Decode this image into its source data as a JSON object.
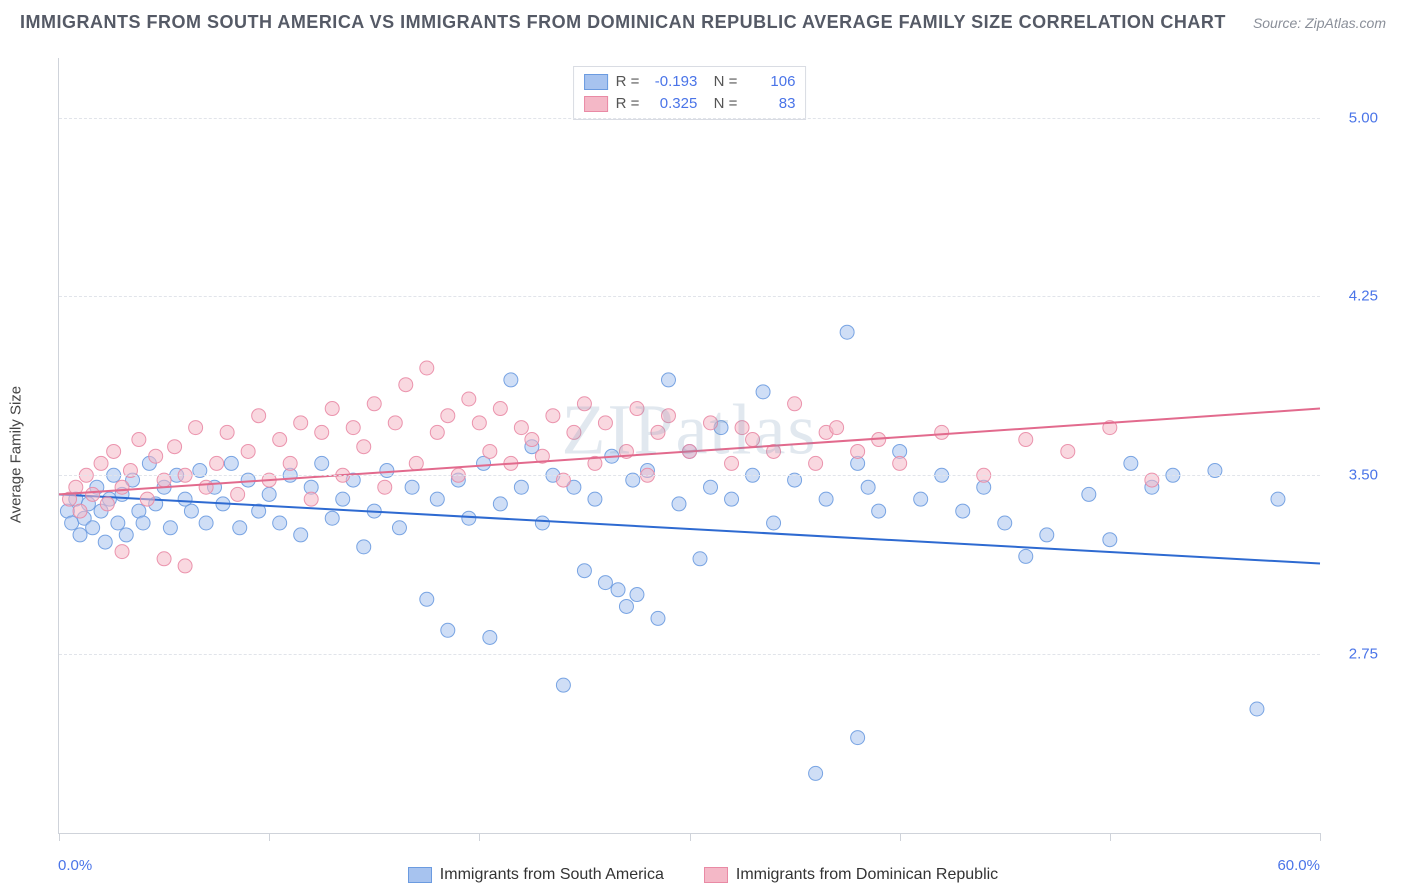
{
  "title": "IMMIGRANTS FROM SOUTH AMERICA VS IMMIGRANTS FROM DOMINICAN REPUBLIC AVERAGE FAMILY SIZE CORRELATION CHART",
  "source_label": "Source: ZipAtlas.com",
  "watermark": "ZIPatlas",
  "y_axis_label": "Average Family Size",
  "chart": {
    "type": "scatter",
    "xlim": [
      0,
      60
    ],
    "ylim": [
      2.0,
      5.25
    ],
    "x_min_label": "0.0%",
    "x_max_label": "60.0%",
    "y_ticks": [
      2.75,
      3.5,
      4.25,
      5.0
    ],
    "y_tick_labels": [
      "2.75",
      "3.50",
      "4.25",
      "5.00"
    ],
    "x_tick_positions": [
      0,
      10,
      20,
      30,
      40,
      50,
      60
    ],
    "background_color": "#ffffff",
    "grid_color": "#e1e4ea",
    "axis_color": "#cfd3da",
    "tick_label_color": "#4a74e8",
    "marker_radius": 7,
    "marker_opacity": 0.55,
    "marker_stroke_opacity": 0.9,
    "line_width": 2,
    "series": [
      {
        "name": "Immigrants from South America",
        "color_fill": "#a7c3ef",
        "color_stroke": "#6b9be0",
        "line_color": "#2e6ad1",
        "R": "-0.193",
        "N": "106",
        "trend": {
          "x1": 0,
          "y1": 3.42,
          "x2": 60,
          "y2": 3.13
        },
        "points": [
          [
            0.4,
            3.35
          ],
          [
            0.6,
            3.3
          ],
          [
            0.8,
            3.4
          ],
          [
            1.0,
            3.25
          ],
          [
            1.2,
            3.32
          ],
          [
            1.4,
            3.38
          ],
          [
            1.6,
            3.28
          ],
          [
            1.8,
            3.45
          ],
          [
            2.0,
            3.35
          ],
          [
            2.2,
            3.22
          ],
          [
            2.4,
            3.4
          ],
          [
            2.6,
            3.5
          ],
          [
            2.8,
            3.3
          ],
          [
            3.0,
            3.42
          ],
          [
            3.2,
            3.25
          ],
          [
            3.5,
            3.48
          ],
          [
            3.8,
            3.35
          ],
          [
            4.0,
            3.3
          ],
          [
            4.3,
            3.55
          ],
          [
            4.6,
            3.38
          ],
          [
            5.0,
            3.45
          ],
          [
            5.3,
            3.28
          ],
          [
            5.6,
            3.5
          ],
          [
            6.0,
            3.4
          ],
          [
            6.3,
            3.35
          ],
          [
            6.7,
            3.52
          ],
          [
            7.0,
            3.3
          ],
          [
            7.4,
            3.45
          ],
          [
            7.8,
            3.38
          ],
          [
            8.2,
            3.55
          ],
          [
            8.6,
            3.28
          ],
          [
            9.0,
            3.48
          ],
          [
            9.5,
            3.35
          ],
          [
            10.0,
            3.42
          ],
          [
            10.5,
            3.3
          ],
          [
            11.0,
            3.5
          ],
          [
            11.5,
            3.25
          ],
          [
            12.0,
            3.45
          ],
          [
            12.5,
            3.55
          ],
          [
            13.0,
            3.32
          ],
          [
            13.5,
            3.4
          ],
          [
            14.0,
            3.48
          ],
          [
            14.5,
            3.2
          ],
          [
            15.0,
            3.35
          ],
          [
            15.6,
            3.52
          ],
          [
            16.2,
            3.28
          ],
          [
            16.8,
            3.45
          ],
          [
            17.5,
            2.98
          ],
          [
            18.0,
            3.4
          ],
          [
            18.5,
            2.85
          ],
          [
            19.0,
            3.48
          ],
          [
            19.5,
            3.32
          ],
          [
            20.2,
            3.55
          ],
          [
            20.5,
            2.82
          ],
          [
            21.0,
            3.38
          ],
          [
            21.5,
            3.9
          ],
          [
            22.0,
            3.45
          ],
          [
            22.5,
            3.62
          ],
          [
            23.0,
            3.3
          ],
          [
            23.5,
            3.5
          ],
          [
            24.0,
            2.62
          ],
          [
            24.5,
            3.45
          ],
          [
            25.0,
            3.1
          ],
          [
            25.5,
            3.4
          ],
          [
            26.0,
            3.05
          ],
          [
            26.3,
            3.58
          ],
          [
            26.6,
            3.02
          ],
          [
            27.0,
            2.95
          ],
          [
            27.3,
            3.48
          ],
          [
            27.5,
            3.0
          ],
          [
            28.0,
            3.52
          ],
          [
            28.5,
            2.9
          ],
          [
            29.0,
            3.9
          ],
          [
            29.5,
            3.38
          ],
          [
            30.0,
            3.6
          ],
          [
            30.5,
            3.15
          ],
          [
            31.0,
            3.45
          ],
          [
            31.5,
            3.7
          ],
          [
            32.0,
            3.4
          ],
          [
            33.0,
            3.5
          ],
          [
            33.5,
            3.85
          ],
          [
            34.0,
            3.3
          ],
          [
            35.0,
            3.48
          ],
          [
            36.0,
            2.25
          ],
          [
            36.5,
            3.4
          ],
          [
            37.5,
            4.1
          ],
          [
            38.0,
            3.55
          ],
          [
            38.0,
            2.4
          ],
          [
            38.5,
            3.45
          ],
          [
            39.0,
            3.35
          ],
          [
            40.0,
            3.6
          ],
          [
            41.0,
            3.4
          ],
          [
            42.0,
            3.5
          ],
          [
            43.0,
            3.35
          ],
          [
            44.0,
            3.45
          ],
          [
            45.0,
            3.3
          ],
          [
            46.0,
            3.16
          ],
          [
            47.0,
            3.25
          ],
          [
            49.0,
            3.42
          ],
          [
            50.0,
            3.23
          ],
          [
            51.0,
            3.55
          ],
          [
            52.0,
            3.45
          ],
          [
            53.0,
            3.5
          ],
          [
            55.0,
            3.52
          ],
          [
            57.0,
            2.52
          ],
          [
            58.0,
            3.4
          ]
        ]
      },
      {
        "name": "Immigrants from Dominican Republic",
        "color_fill": "#f4b8c7",
        "color_stroke": "#e98aa5",
        "line_color": "#e26a8d",
        "R": "0.325",
        "N": "83",
        "trend": {
          "x1": 0,
          "y1": 3.42,
          "x2": 60,
          "y2": 3.78
        },
        "points": [
          [
            0.5,
            3.4
          ],
          [
            0.8,
            3.45
          ],
          [
            1.0,
            3.35
          ],
          [
            1.3,
            3.5
          ],
          [
            1.6,
            3.42
          ],
          [
            2.0,
            3.55
          ],
          [
            2.3,
            3.38
          ],
          [
            2.6,
            3.6
          ],
          [
            3.0,
            3.45
          ],
          [
            3.0,
            3.18
          ],
          [
            3.4,
            3.52
          ],
          [
            3.8,
            3.65
          ],
          [
            4.2,
            3.4
          ],
          [
            4.6,
            3.58
          ],
          [
            5.0,
            3.48
          ],
          [
            5.0,
            3.15
          ],
          [
            5.5,
            3.62
          ],
          [
            6.0,
            3.5
          ],
          [
            6.0,
            3.12
          ],
          [
            6.5,
            3.7
          ],
          [
            7.0,
            3.45
          ],
          [
            7.5,
            3.55
          ],
          [
            8.0,
            3.68
          ],
          [
            8.5,
            3.42
          ],
          [
            9.0,
            3.6
          ],
          [
            9.5,
            3.75
          ],
          [
            10.0,
            3.48
          ],
          [
            10.5,
            3.65
          ],
          [
            11.0,
            3.55
          ],
          [
            11.5,
            3.72
          ],
          [
            12.0,
            3.4
          ],
          [
            12.5,
            3.68
          ],
          [
            13.0,
            3.78
          ],
          [
            13.5,
            3.5
          ],
          [
            14.0,
            3.7
          ],
          [
            14.5,
            3.62
          ],
          [
            15.0,
            3.8
          ],
          [
            15.5,
            3.45
          ],
          [
            16.0,
            3.72
          ],
          [
            16.5,
            3.88
          ],
          [
            17.0,
            3.55
          ],
          [
            17.5,
            3.95
          ],
          [
            18.0,
            3.68
          ],
          [
            18.5,
            3.75
          ],
          [
            19.0,
            3.5
          ],
          [
            19.5,
            3.82
          ],
          [
            20.0,
            3.72
          ],
          [
            20.5,
            3.6
          ],
          [
            21.0,
            3.78
          ],
          [
            21.5,
            3.55
          ],
          [
            22.0,
            3.7
          ],
          [
            22.5,
            3.65
          ],
          [
            23.0,
            3.58
          ],
          [
            23.5,
            3.75
          ],
          [
            24.0,
            3.48
          ],
          [
            24.5,
            3.68
          ],
          [
            25.0,
            3.8
          ],
          [
            25.5,
            3.55
          ],
          [
            26.0,
            3.72
          ],
          [
            27.0,
            3.6
          ],
          [
            27.5,
            3.78
          ],
          [
            28.0,
            3.5
          ],
          [
            28.5,
            3.68
          ],
          [
            29.0,
            3.75
          ],
          [
            30.0,
            3.6
          ],
          [
            31.0,
            3.72
          ],
          [
            32.0,
            3.55
          ],
          [
            32.5,
            3.7
          ],
          [
            33.0,
            3.65
          ],
          [
            34.0,
            3.6
          ],
          [
            35.0,
            3.8
          ],
          [
            36.0,
            3.55
          ],
          [
            36.5,
            3.68
          ],
          [
            37.0,
            3.7
          ],
          [
            38.0,
            3.6
          ],
          [
            39.0,
            3.65
          ],
          [
            40.0,
            3.55
          ],
          [
            42.0,
            3.68
          ],
          [
            44.0,
            3.5
          ],
          [
            46.0,
            3.65
          ],
          [
            48.0,
            3.6
          ],
          [
            50.0,
            3.7
          ],
          [
            52.0,
            3.48
          ]
        ]
      }
    ]
  },
  "legend_bottom": [
    "Immigrants from South America",
    "Immigrants from Dominican Republic"
  ]
}
